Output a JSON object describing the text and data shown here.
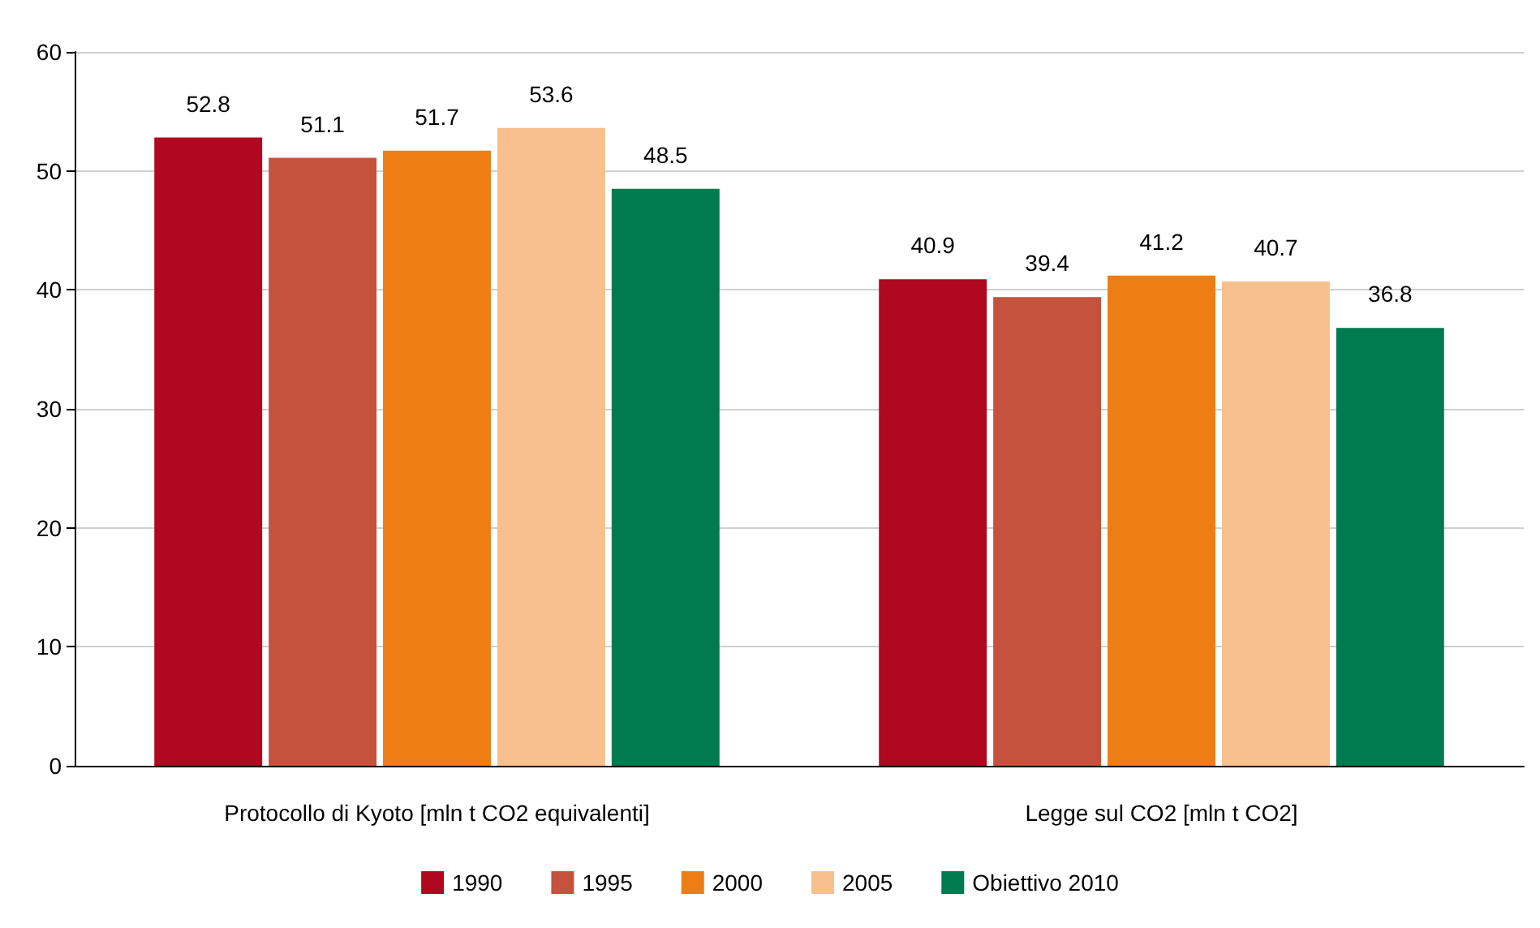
{
  "chart_data": {
    "type": "bar",
    "categories": [
      "Protocollo di Kyoto [mln t CO2 equivalenti]",
      "Legge sul CO2 [mln t CO2]"
    ],
    "series": [
      {
        "name": "1990",
        "color": "#b0081e",
        "values": [
          52.8,
          40.9
        ]
      },
      {
        "name": "1995",
        "color": "#c4523c",
        "values": [
          51.1,
          39.4
        ]
      },
      {
        "name": "2000",
        "color": "#ee7d14",
        "values": [
          51.7,
          41.2
        ]
      },
      {
        "name": "2005",
        "color": "#f7c08c",
        "values": [
          53.6,
          40.7
        ]
      },
      {
        "name": "Obiettivo 2010",
        "color": "#007a4f",
        "values": [
          48.5,
          36.8
        ]
      }
    ],
    "ylim": [
      0,
      60
    ],
    "yticks": [
      0,
      10,
      20,
      30,
      40,
      50,
      60
    ],
    "grid": "y",
    "legend": "bottom",
    "data_labels": true
  }
}
